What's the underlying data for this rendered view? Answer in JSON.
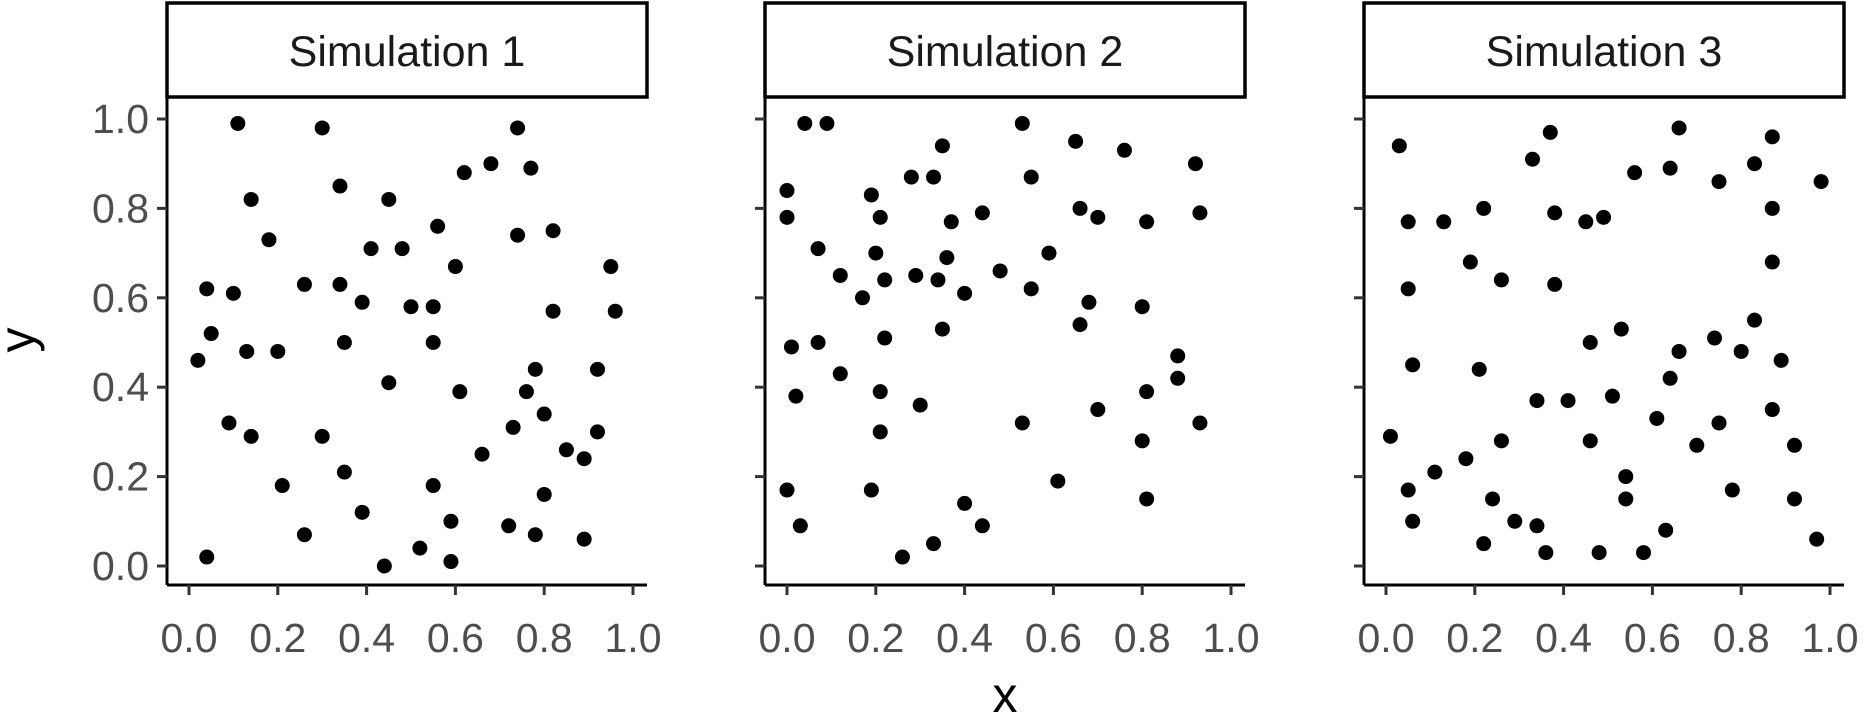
{
  "chart_data": {
    "type": "scatter",
    "xlabel": "x",
    "ylabel": "y",
    "xlim": [
      0,
      1
    ],
    "ylim": [
      0,
      1
    ],
    "x_ticks": [
      "0.0",
      "0.2",
      "0.4",
      "0.6",
      "0.8",
      "1.0"
    ],
    "y_ticks": [
      "0.0",
      "0.2",
      "0.4",
      "0.6",
      "0.8",
      "1.0"
    ],
    "grid": false,
    "point_color": "#000000",
    "panels": [
      {
        "title": "Simulation 1",
        "points": [
          [
            0.11,
            0.99
          ],
          [
            0.3,
            0.98
          ],
          [
            0.74,
            0.98
          ],
          [
            0.68,
            0.9
          ],
          [
            0.77,
            0.89
          ],
          [
            0.62,
            0.88
          ],
          [
            0.34,
            0.85
          ],
          [
            0.14,
            0.82
          ],
          [
            0.45,
            0.82
          ],
          [
            0.56,
            0.76
          ],
          [
            0.82,
            0.75
          ],
          [
            0.74,
            0.74
          ],
          [
            0.18,
            0.73
          ],
          [
            0.41,
            0.71
          ],
          [
            0.48,
            0.71
          ],
          [
            0.95,
            0.67
          ],
          [
            0.6,
            0.67
          ],
          [
            0.26,
            0.63
          ],
          [
            0.34,
            0.63
          ],
          [
            0.04,
            0.62
          ],
          [
            0.1,
            0.61
          ],
          [
            0.39,
            0.59
          ],
          [
            0.5,
            0.58
          ],
          [
            0.55,
            0.58
          ],
          [
            0.82,
            0.57
          ],
          [
            0.96,
            0.57
          ],
          [
            0.05,
            0.52
          ],
          [
            0.55,
            0.5
          ],
          [
            0.35,
            0.5
          ],
          [
            0.2,
            0.48
          ],
          [
            0.13,
            0.48
          ],
          [
            0.02,
            0.46
          ],
          [
            0.78,
            0.44
          ],
          [
            0.92,
            0.44
          ],
          [
            0.45,
            0.41
          ],
          [
            0.61,
            0.39
          ],
          [
            0.76,
            0.39
          ],
          [
            0.8,
            0.34
          ],
          [
            0.09,
            0.32
          ],
          [
            0.73,
            0.31
          ],
          [
            0.92,
            0.3
          ],
          [
            0.14,
            0.29
          ],
          [
            0.3,
            0.29
          ],
          [
            0.85,
            0.26
          ],
          [
            0.66,
            0.25
          ],
          [
            0.89,
            0.24
          ],
          [
            0.35,
            0.21
          ],
          [
            0.21,
            0.18
          ],
          [
            0.55,
            0.18
          ],
          [
            0.8,
            0.16
          ],
          [
            0.39,
            0.12
          ],
          [
            0.59,
            0.1
          ],
          [
            0.72,
            0.09
          ],
          [
            0.26,
            0.07
          ],
          [
            0.78,
            0.07
          ],
          [
            0.89,
            0.06
          ],
          [
            0.52,
            0.04
          ],
          [
            0.04,
            0.02
          ],
          [
            0.59,
            0.01
          ],
          [
            0.44,
            0.0
          ]
        ]
      },
      {
        "title": "Simulation 2",
        "points": [
          [
            0.53,
            0.99
          ],
          [
            0.04,
            0.99
          ],
          [
            0.09,
            0.99
          ],
          [
            0.35,
            0.94
          ],
          [
            0.65,
            0.95
          ],
          [
            0.76,
            0.93
          ],
          [
            0.92,
            0.9
          ],
          [
            0.55,
            0.87
          ],
          [
            0.28,
            0.87
          ],
          [
            0.33,
            0.87
          ],
          [
            0.0,
            0.84
          ],
          [
            0.19,
            0.83
          ],
          [
            0.21,
            0.78
          ],
          [
            0.0,
            0.78
          ],
          [
            0.44,
            0.79
          ],
          [
            0.66,
            0.8
          ],
          [
            0.93,
            0.79
          ],
          [
            0.7,
            0.78
          ],
          [
            0.81,
            0.77
          ],
          [
            0.37,
            0.77
          ],
          [
            0.07,
            0.71
          ],
          [
            0.2,
            0.7
          ],
          [
            0.59,
            0.7
          ],
          [
            0.36,
            0.69
          ],
          [
            0.48,
            0.66
          ],
          [
            0.12,
            0.65
          ],
          [
            0.29,
            0.65
          ],
          [
            0.34,
            0.64
          ],
          [
            0.22,
            0.64
          ],
          [
            0.55,
            0.62
          ],
          [
            0.4,
            0.61
          ],
          [
            0.17,
            0.6
          ],
          [
            0.8,
            0.58
          ],
          [
            0.68,
            0.59
          ],
          [
            0.66,
            0.54
          ],
          [
            0.35,
            0.53
          ],
          [
            0.22,
            0.51
          ],
          [
            0.01,
            0.49
          ],
          [
            0.07,
            0.5
          ],
          [
            0.88,
            0.47
          ],
          [
            0.88,
            0.42
          ],
          [
            0.12,
            0.43
          ],
          [
            0.21,
            0.39
          ],
          [
            0.81,
            0.39
          ],
          [
            0.02,
            0.38
          ],
          [
            0.3,
            0.36
          ],
          [
            0.7,
            0.35
          ],
          [
            0.93,
            0.32
          ],
          [
            0.53,
            0.32
          ],
          [
            0.21,
            0.3
          ],
          [
            0.8,
            0.28
          ],
          [
            0.61,
            0.19
          ],
          [
            0.0,
            0.17
          ],
          [
            0.19,
            0.17
          ],
          [
            0.81,
            0.15
          ],
          [
            0.4,
            0.14
          ],
          [
            0.44,
            0.09
          ],
          [
            0.03,
            0.09
          ],
          [
            0.33,
            0.05
          ],
          [
            0.26,
            0.02
          ]
        ]
      },
      {
        "title": "Simulation 3",
        "points": [
          [
            0.37,
            0.97
          ],
          [
            0.66,
            0.98
          ],
          [
            0.87,
            0.96
          ],
          [
            0.03,
            0.94
          ],
          [
            0.33,
            0.91
          ],
          [
            0.64,
            0.89
          ],
          [
            0.83,
            0.9
          ],
          [
            0.56,
            0.88
          ],
          [
            0.98,
            0.86
          ],
          [
            0.75,
            0.86
          ],
          [
            0.87,
            0.8
          ],
          [
            0.22,
            0.8
          ],
          [
            0.38,
            0.79
          ],
          [
            0.49,
            0.78
          ],
          [
            0.45,
            0.77
          ],
          [
            0.05,
            0.77
          ],
          [
            0.13,
            0.77
          ],
          [
            0.87,
            0.68
          ],
          [
            0.19,
            0.68
          ],
          [
            0.26,
            0.64
          ],
          [
            0.05,
            0.62
          ],
          [
            0.38,
            0.63
          ],
          [
            0.83,
            0.55
          ],
          [
            0.53,
            0.53
          ],
          [
            0.74,
            0.51
          ],
          [
            0.46,
            0.5
          ],
          [
            0.8,
            0.48
          ],
          [
            0.66,
            0.48
          ],
          [
            0.89,
            0.46
          ],
          [
            0.06,
            0.45
          ],
          [
            0.21,
            0.44
          ],
          [
            0.64,
            0.42
          ],
          [
            0.51,
            0.38
          ],
          [
            0.41,
            0.37
          ],
          [
            0.34,
            0.37
          ],
          [
            0.87,
            0.35
          ],
          [
            0.61,
            0.33
          ],
          [
            0.75,
            0.32
          ],
          [
            0.01,
            0.29
          ],
          [
            0.46,
            0.28
          ],
          [
            0.26,
            0.28
          ],
          [
            0.7,
            0.27
          ],
          [
            0.92,
            0.27
          ],
          [
            0.18,
            0.24
          ],
          [
            0.11,
            0.21
          ],
          [
            0.54,
            0.2
          ],
          [
            0.78,
            0.17
          ],
          [
            0.05,
            0.17
          ],
          [
            0.92,
            0.15
          ],
          [
            0.24,
            0.15
          ],
          [
            0.54,
            0.15
          ],
          [
            0.06,
            0.1
          ],
          [
            0.29,
            0.1
          ],
          [
            0.34,
            0.09
          ],
          [
            0.63,
            0.08
          ],
          [
            0.97,
            0.06
          ],
          [
            0.22,
            0.05
          ],
          [
            0.48,
            0.03
          ],
          [
            0.58,
            0.03
          ],
          [
            0.36,
            0.03
          ]
        ]
      }
    ]
  }
}
